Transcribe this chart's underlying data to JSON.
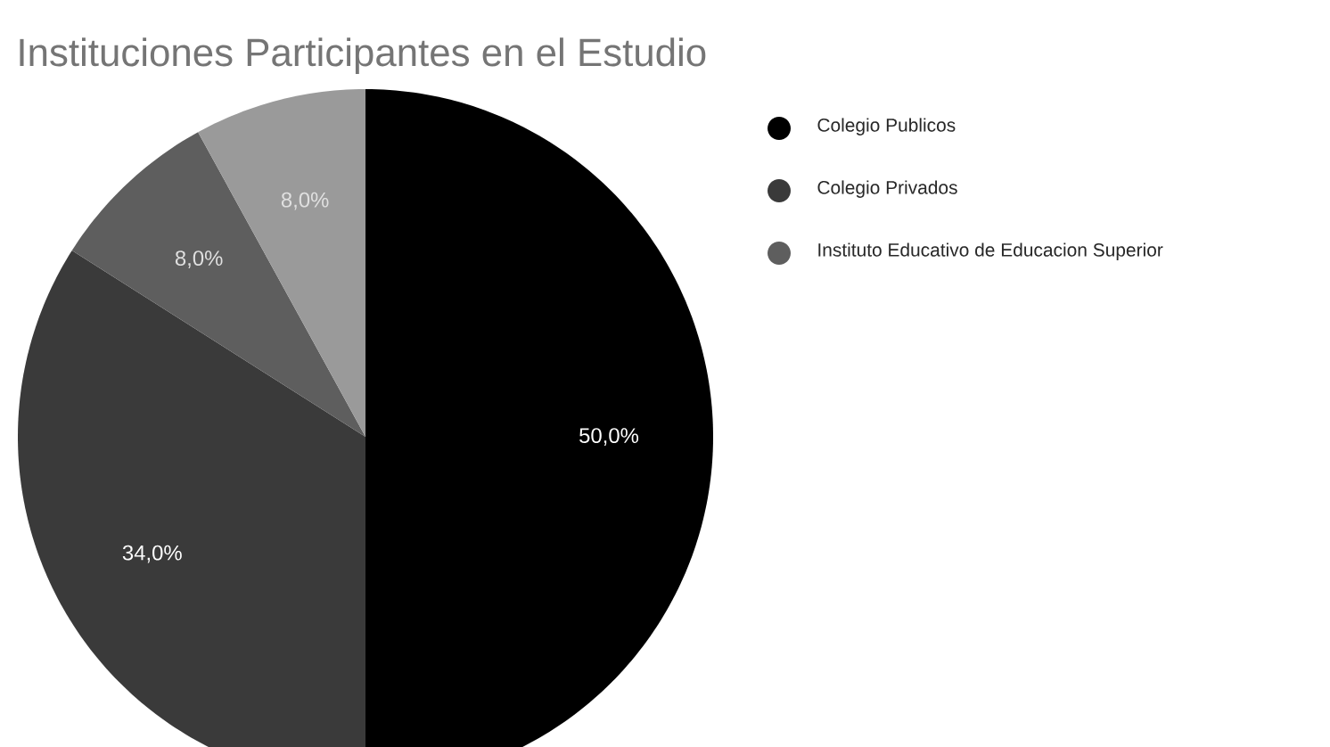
{
  "chart_data": {
    "type": "pie",
    "title": "Instituciones Participantes en el Estudio",
    "categories": [
      "Colegio Publicos",
      "Colegio Privados",
      "Instituto Educativo de Educacion Superior",
      null
    ],
    "values": [
      50,
      34,
      8,
      8
    ],
    "colors": [
      "#000000",
      "#3a3a3a",
      "#5e5e5e",
      "#9a9a9a"
    ],
    "value_labels": [
      "50,0%",
      "34,0%",
      "8,0%",
      "8,0%"
    ],
    "legend": "right"
  }
}
